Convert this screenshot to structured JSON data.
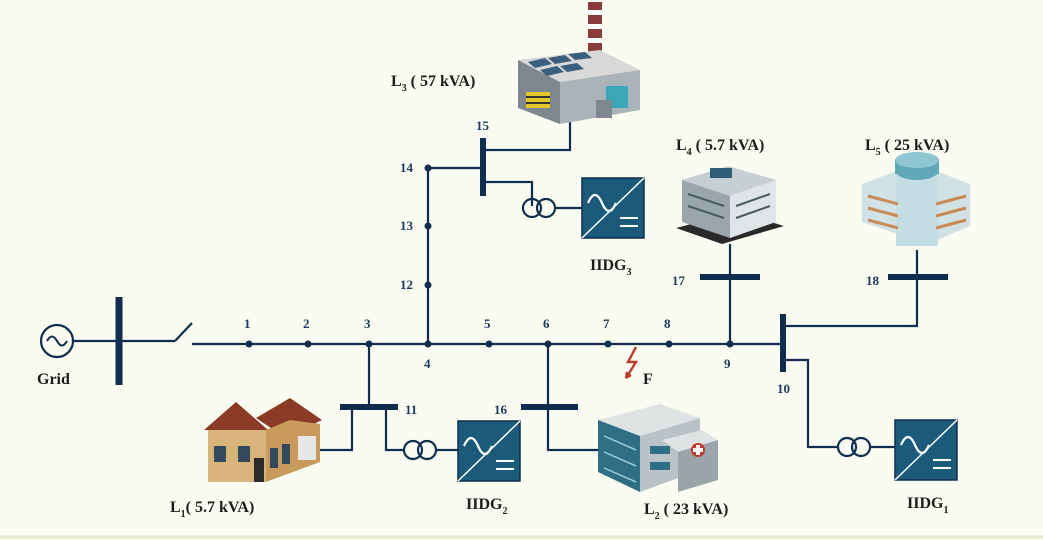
{
  "grid": {
    "label": "Grid"
  },
  "nodes": {
    "n1": "1",
    "n2": "2",
    "n3": "3",
    "n4": "4",
    "n5": "5",
    "n6": "6",
    "n7": "7",
    "n8": "8",
    "n9": "9",
    "n10": "10",
    "n11": "11",
    "n12": "12",
    "n13": "13",
    "n14": "14",
    "n15": "15",
    "n16": "16",
    "n17": "17",
    "n18": "18"
  },
  "loads": {
    "l1": {
      "sym": "L",
      "sub": "1",
      "rating": "( 5.7 kVA)"
    },
    "l2": {
      "sym": "L",
      "sub": "2",
      "rating": " ( 23 kVA)"
    },
    "l3": {
      "sym": "L",
      "sub": "3",
      "rating": " ( 57 kVA)"
    },
    "l4": {
      "sym": "L",
      "sub": "4",
      "rating": " ( 5.7 kVA)"
    },
    "l5": {
      "sym": "L",
      "sub": "5",
      "rating": " ( 25 kVA)"
    }
  },
  "iidg": {
    "g1": {
      "sym": "IIDG",
      "sub": "1"
    },
    "g2": {
      "sym": "IIDG",
      "sub": "2"
    },
    "g3": {
      "sym": "IIDG",
      "sub": "3"
    }
  },
  "fault": {
    "label": "F"
  },
  "colors": {
    "line": "#0f2e4f",
    "node": "#0f2e4f",
    "inverter": "#1b5a7a",
    "background": "#fbfcf1"
  }
}
